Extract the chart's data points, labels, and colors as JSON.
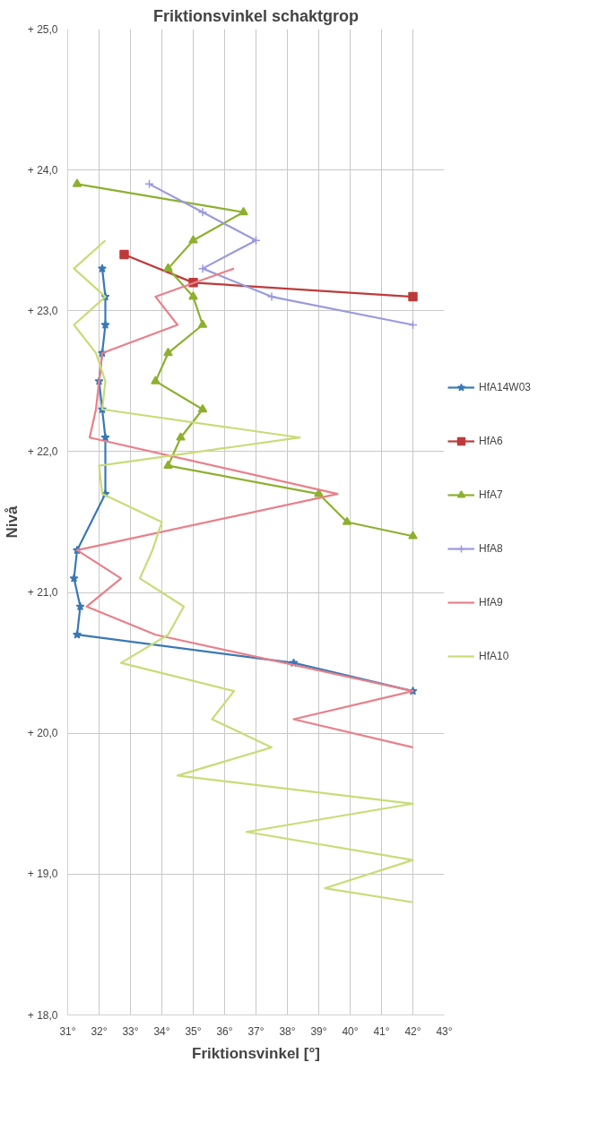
{
  "chart_data": {
    "type": "line",
    "title": "Friktionsvinkel schaktgrop",
    "xlabel": "Friktionsvinkel [°]",
    "ylabel": "Nivå",
    "xlim": [
      31,
      43
    ],
    "ylim": [
      18,
      25
    ],
    "xticks": [
      {
        "value": 31,
        "label": "31°"
      },
      {
        "value": 32,
        "label": "32°"
      },
      {
        "value": 33,
        "label": "33°"
      },
      {
        "value": 34,
        "label": "34°"
      },
      {
        "value": 35,
        "label": "35°"
      },
      {
        "value": 36,
        "label": "36°"
      },
      {
        "value": 37,
        "label": "37°"
      },
      {
        "value": 38,
        "label": "38°"
      },
      {
        "value": 39,
        "label": "39°"
      },
      {
        "value": 40,
        "label": "40°"
      },
      {
        "value": 41,
        "label": "41°"
      },
      {
        "value": 42,
        "label": "42°"
      },
      {
        "value": 43,
        "label": "43°"
      }
    ],
    "yticks": [
      {
        "value": 18,
        "label": "+ 18,0"
      },
      {
        "value": 19,
        "label": "+ 19,0"
      },
      {
        "value": 20,
        "label": "+ 20,0"
      },
      {
        "value": 21,
        "label": "+ 21,0"
      },
      {
        "value": 22,
        "label": "+ 22,0"
      },
      {
        "value": 23,
        "label": "+ 23,0"
      },
      {
        "value": 24,
        "label": "+ 24,0"
      },
      {
        "value": 25,
        "label": "+ 25,0"
      }
    ],
    "grid": true,
    "legend": "right",
    "line_style": "solid",
    "series": [
      {
        "name": "HfA14W03",
        "color": "#3a78b5",
        "marker": "star",
        "x": [
          32.1,
          32.2,
          32.2,
          32.1,
          32.0,
          32.1,
          32.2,
          32.2,
          31.3,
          31.2,
          31.4,
          31.3,
          38.2,
          42
        ],
        "values": [
          23.3,
          23.1,
          22.9,
          22.7,
          22.5,
          22.3,
          22.1,
          21.7,
          21.3,
          21.1,
          20.9,
          20.7,
          20.5,
          20.3
        ]
      },
      {
        "name": "HfA6",
        "color": "#be3a3a",
        "marker": "square",
        "x": [
          32.8,
          35.0,
          42
        ],
        "values": [
          23.4,
          23.2,
          23.1
        ]
      },
      {
        "name": "HfA7",
        "color": "#8db02f",
        "marker": "triangle",
        "x": [
          31.3,
          36.6,
          35.0,
          34.2,
          35.0,
          35.3,
          34.2,
          33.8,
          35.3,
          34.6,
          34.2,
          39.0,
          39.9,
          42
        ],
        "values": [
          23.9,
          23.7,
          23.5,
          23.3,
          23.1,
          22.9,
          22.7,
          22.5,
          22.3,
          22.1,
          21.9,
          21.7,
          21.5,
          21.4
        ]
      },
      {
        "name": "HfA8",
        "color": "#9a9ade",
        "marker": "cross",
        "x": [
          33.6,
          35.3,
          37.0,
          35.3,
          37.5,
          42
        ],
        "values": [
          23.9,
          23.7,
          23.5,
          23.3,
          23.1,
          22.9
        ]
      },
      {
        "name": "HfA9",
        "color": "#e8808a",
        "marker": "none",
        "x": [
          36.3,
          33.8,
          34.5,
          32.1,
          32.0,
          31.9,
          31.7,
          39.6,
          31.3,
          32.7,
          31.6,
          33.8,
          42,
          38.2,
          42
        ],
        "values": [
          23.3,
          23.1,
          22.9,
          22.7,
          22.5,
          22.3,
          22.1,
          21.7,
          21.3,
          21.1,
          20.9,
          20.7,
          20.3,
          20.1,
          19.9
        ]
      },
      {
        "name": "HfA10",
        "color": "#c8dc78",
        "marker": "none",
        "x": [
          32.2,
          31.2,
          32.2,
          31.2,
          31.9,
          32.2,
          32.1,
          38.4,
          32.0,
          32.1,
          34.0,
          33.7,
          33.3,
          34.7,
          34.2,
          32.7,
          36.3,
          35.6,
          37.5,
          34.5,
          42,
          36.7,
          42,
          39.2,
          42
        ],
        "values": [
          23.5,
          23.3,
          23.1,
          22.9,
          22.7,
          22.5,
          22.3,
          22.1,
          21.9,
          21.7,
          21.5,
          21.3,
          21.1,
          20.9,
          20.7,
          20.5,
          20.3,
          20.1,
          19.9,
          19.7,
          19.5,
          19.3,
          19.1,
          18.9,
          18.8
        ]
      }
    ]
  }
}
